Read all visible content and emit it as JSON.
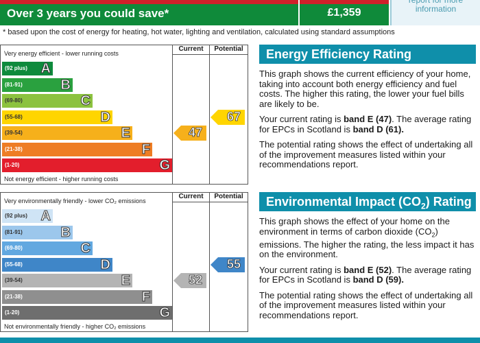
{
  "savings": {
    "headline": "Over 3 years you could save*",
    "amount": "£1,359",
    "side_note": "report for more information"
  },
  "footnote": "* based upon the cost of energy for heating, hot water, lighting and ventilation, calculated using standard assumptions",
  "efficiency_chart": {
    "top_label": "Very energy efficient - lower running costs",
    "bottom_label": "Not energy efficient - higher running costs",
    "col_current": "Current",
    "col_potential": "Potential",
    "bands": [
      {
        "range": "(92 plus)",
        "letter": "A",
        "color": "#0e8a3c",
        "range_color": "#ffffff"
      },
      {
        "range": "(81-91)",
        "letter": "B",
        "color": "#2aa13f",
        "range_color": "#ffffff"
      },
      {
        "range": "(69-80)",
        "letter": "C",
        "color": "#8cc23f",
        "range_color": "#333333"
      },
      {
        "range": "(55-68)",
        "letter": "D",
        "color": "#ffd500",
        "range_color": "#333333"
      },
      {
        "range": "(39-54)",
        "letter": "E",
        "color": "#f6b01b",
        "range_color": "#333333"
      },
      {
        "range": "(21-38)",
        "letter": "F",
        "color": "#ee7d24",
        "range_color": "#ffffff"
      },
      {
        "range": "(1-20)",
        "letter": "G",
        "color": "#e31e2c",
        "range_color": "#ffffff"
      }
    ],
    "current": {
      "value": "47",
      "band": "E",
      "color": "#f6b01b"
    },
    "potential": {
      "value": "67",
      "band": "D",
      "color": "#ffd500"
    }
  },
  "environment_chart": {
    "top_label": "Very environmentally friendly - lower CO₂ emissions",
    "bottom_label": "Not environmentally friendly - higher CO₂ emissions",
    "col_current": "Current",
    "col_potential": "Potential",
    "bands": [
      {
        "range": "(92 plus)",
        "letter": "A",
        "color": "#cfe4f5",
        "range_color": "#333333"
      },
      {
        "range": "(81-91)",
        "letter": "B",
        "color": "#9cc7ec",
        "range_color": "#333333"
      },
      {
        "range": "(69-80)",
        "letter": "C",
        "color": "#62a8e0",
        "range_color": "#ffffff"
      },
      {
        "range": "(55-68)",
        "letter": "D",
        "color": "#3f86c8",
        "range_color": "#ffffff"
      },
      {
        "range": "(39-54)",
        "letter": "E",
        "color": "#b4b4b4",
        "range_color": "#333333"
      },
      {
        "range": "(21-38)",
        "letter": "F",
        "color": "#8f8f8f",
        "range_color": "#ffffff"
      },
      {
        "range": "(1-20)",
        "letter": "G",
        "color": "#6e6e6e",
        "range_color": "#ffffff"
      }
    ],
    "current": {
      "value": "52",
      "band": "E",
      "color": "#b4b4b4"
    },
    "potential": {
      "value": "55",
      "band": "D",
      "color": "#3f86c8"
    }
  },
  "energy_panel": {
    "title": "Energy Efficiency Rating",
    "p1": "This graph shows the current efficiency of your home, taking into account both energy efficiency and fuel costs. The higher this rating, the lower your fuel bills are likely to be.",
    "p2_pre": "Your current rating is ",
    "p2_b1": "band E (47)",
    "p2_mid": ". The average rating for EPCs in Scotland is ",
    "p2_b2": "band D (61).",
    "p3": "The potential rating shows the effect of undertaking all of the improvement measures listed within your recommendations report."
  },
  "environment_panel": {
    "title_pre": "Environmental Impact (CO",
    "title_sub": "2",
    "title_post": ") Rating",
    "p1_pre": "This graph shows the effect of your home on the environment in terms of carbon dioxide (CO",
    "p1_sub": "2",
    "p1_post": ") emissions. The higher the rating, the less impact it has on the environment.",
    "p2_pre": "Your current rating is ",
    "p2_b1": "band E (52)",
    "p2_mid": ". The average rating for EPCs in Scotland is ",
    "p2_b2": "band D (59).",
    "p3": "The potential rating shows the effect of undertaking all of the improvement measures listed within your recommendations report."
  }
}
